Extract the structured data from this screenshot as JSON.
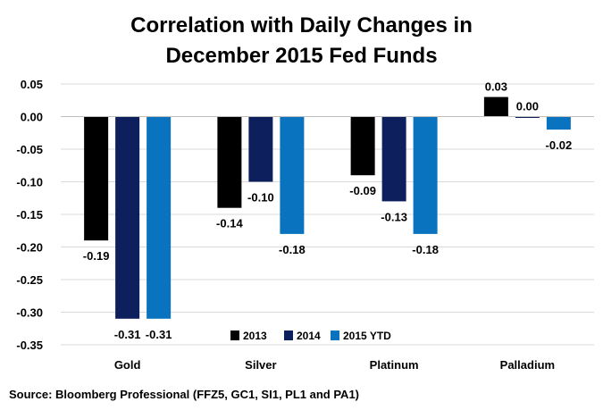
{
  "chart_data": {
    "type": "bar",
    "title_lines": [
      "Correlation with Daily Changes in",
      "December 2015 Fed Funds"
    ],
    "categories": [
      "Gold",
      "Silver",
      "Platinum",
      "Palladium"
    ],
    "series": [
      {
        "name": "2013",
        "color": "#000000",
        "values": [
          -0.19,
          -0.14,
          -0.09,
          0.03
        ],
        "labels": [
          "-0.19",
          "-0.14",
          "-0.09",
          "0.03"
        ]
      },
      {
        "name": "2014",
        "color": "#0d1f5c",
        "values": [
          -0.31,
          -0.1,
          -0.13,
          0.0
        ],
        "labels": [
          "-0.31",
          "-0.10",
          "-0.13",
          "0.00"
        ]
      },
      {
        "name": "2015 YTD",
        "color": "#0a73bf",
        "values": [
          -0.31,
          -0.18,
          -0.18,
          -0.02
        ],
        "labels": [
          "-0.31",
          "-0.18",
          "-0.18",
          "-0.02"
        ]
      }
    ],
    "ylim": [
      -0.35,
      0.05
    ],
    "yticks": [
      "0.05",
      "0.00",
      "-0.05",
      "-0.10",
      "-0.15",
      "-0.20",
      "-0.25",
      "-0.30",
      "-0.35"
    ],
    "ytick_values": [
      0.05,
      0.0,
      -0.05,
      -0.1,
      -0.15,
      -0.2,
      -0.25,
      -0.3,
      -0.35
    ],
    "grid": true,
    "legend_position": "bottom-center",
    "source": "Source: Bloomberg Professional (FFZ5, GC1, SI1, PL1 and PA1)"
  }
}
